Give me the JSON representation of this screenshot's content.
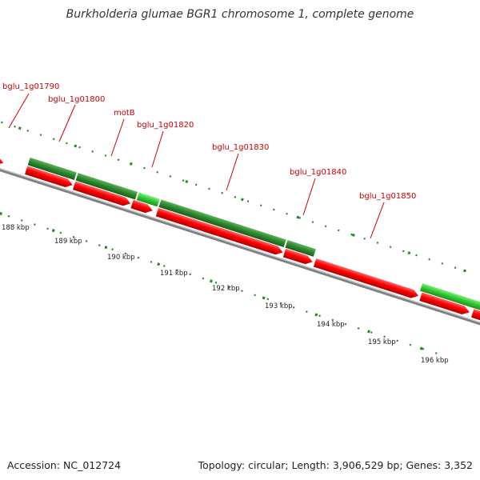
{
  "title": "Burkholderia glumae BGR1 chromosome 1, complete genome",
  "footer": {
    "accession": "Accession: NC_012724",
    "summary": "Topology: circular; Length: 3,906,529 bp; Genes: 3,352"
  },
  "colors": {
    "forward_cds": "#ff0000",
    "reverse_gene_dark": "#2e8b2e",
    "reverse_gene_light": "#33cc33",
    "backbone": "#808080",
    "label": "#cc0000",
    "tick": "#228b22"
  },
  "genes": [
    {
      "label": "bglu_1g01790"
    },
    {
      "label": "bglu_1g01800"
    },
    {
      "label": "motB"
    },
    {
      "label": "bglu_1g01820"
    },
    {
      "label": "bglu_1g01830"
    },
    {
      "label": "bglu_1g01840"
    },
    {
      "label": "bglu_1g01850"
    }
  ],
  "scale": {
    "unit": "kbp",
    "labels": [
      "188 kbp",
      "189 kbp",
      "190 kbp",
      "191 kbp",
      "192 kbp",
      "193 kbp",
      "194 kbp",
      "195 kbp",
      "196 kbp"
    ]
  }
}
